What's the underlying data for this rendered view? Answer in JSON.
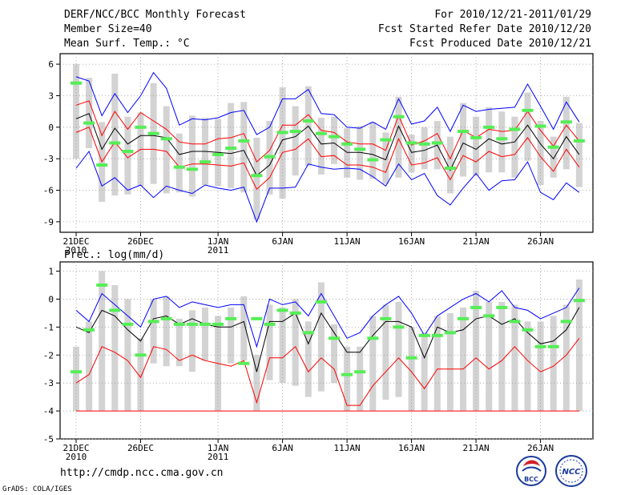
{
  "header": {
    "title": "DERF/NCC/BCC Monthly Forecast",
    "member_size": "Member Size=40",
    "variable": "Mean Surf. Temp.: °C",
    "for_range": "For 2010/12/21-2011/01/29",
    "fcst_started": "Fcst Started Refer Date 2010/12/20",
    "fcst_produced": "Fcst Produced Date 2010/12/21"
  },
  "footer": {
    "url": "http://cmdp.ncc.cma.gov.cn",
    "grads": "GrADS: COLA/IGES",
    "logo_bcc": "BCC",
    "logo_ncc": "NCC"
  },
  "colors": {
    "max": "#0000ff",
    "mean": "#000000",
    "min": "#ff0000",
    "box": "#d3d3d3",
    "obs": "#55ee55",
    "grid": "#999999"
  },
  "chart_data": [
    {
      "type": "line",
      "name": "temperature",
      "title": "",
      "ylabel": "°C",
      "ylim": [
        -10,
        7
      ],
      "yticks": [
        6,
        3,
        0,
        -3,
        -6,
        -9
      ],
      "ytick_labels": [
        "6",
        "3",
        "0",
        "-3",
        "-6",
        "-9"
      ],
      "xtick_labels": [
        {
          "day": 1,
          "label": "21DEC",
          "sub": "2010"
        },
        {
          "day": 6,
          "label": "26DEC",
          "sub": ""
        },
        {
          "day": 12,
          "label": "1JAN",
          "sub": "2011"
        },
        {
          "day": 17,
          "label": "6JAN",
          "sub": ""
        },
        {
          "day": 22,
          "label": "11JAN",
          "sub": ""
        },
        {
          "day": 27,
          "label": "16JAN",
          "sub": ""
        },
        {
          "day": 32,
          "label": "21JAN",
          "sub": ""
        },
        {
          "day": 37,
          "label": "26JAN",
          "sub": ""
        }
      ],
      "x": [
        1,
        2,
        3,
        4,
        5,
        6,
        7,
        8,
        9,
        10,
        11,
        12,
        13,
        14,
        15,
        16,
        17,
        18,
        19,
        20,
        21,
        22,
        23,
        24,
        25,
        26,
        27,
        28,
        29,
        30,
        31,
        32,
        33,
        34,
        35,
        36,
        37,
        38,
        39,
        40
      ],
      "series": [
        {
          "name": "max",
          "values": [
            -3.9,
            -2.3,
            -5.6,
            -4.8,
            -6.0,
            -5.5,
            -6.7,
            -5.6,
            -6.0,
            -6.3,
            -5.5,
            -5.8,
            -6.0,
            -5.7,
            -9.0,
            -5.8,
            -5.8,
            -5.7,
            -3.5,
            -3.8,
            -4.0,
            -3.9,
            -4.0,
            -4.7,
            -5.6,
            -3.5,
            -5.0,
            -4.4,
            -6.5,
            -7.4,
            -5.8,
            -4.4,
            -6.0,
            -5.1,
            -5.0,
            -3.3,
            -6.2,
            -6.9,
            -5.3,
            -6.2
          ]
        },
        {
          "name": "min_upper",
          "values": [
            4.8,
            4.4,
            1.1,
            3.2,
            1.4,
            3.0,
            5.2,
            3.7,
            0.2,
            0.8,
            0.7,
            0.9,
            1.4,
            1.6,
            -0.7,
            0.0,
            2.7,
            2.7,
            3.6,
            1.3,
            1.2,
            0.0,
            -0.1,
            0.5,
            -0.2,
            2.7,
            0.3,
            0.6,
            1.9,
            -0.4,
            2.1,
            1.5,
            1.7,
            1.8,
            1.9,
            4.1,
            2.0,
            -0.2,
            2.4,
            0.5
          ]
        },
        {
          "name": "red_upper",
          "values": [
            2.1,
            2.5,
            -0.8,
            1.5,
            -0.2,
            1.4,
            0.6,
            -0.2,
            -1.4,
            -1.6,
            -1.6,
            -1.1,
            -1.0,
            -0.6,
            -3.3,
            -2.2,
            0.2,
            0.2,
            1.2,
            -0.3,
            -0.5,
            -1.4,
            -1.6,
            -1.6,
            -2.2,
            1.1,
            -1.7,
            -1.3,
            -0.6,
            -3.0,
            -0.3,
            -1.0,
            -0.2,
            -0.4,
            -0.3,
            1.5,
            -0.3,
            -1.8,
            0.2,
            -1.3
          ]
        },
        {
          "name": "mean",
          "values": [
            0.8,
            1.3,
            -2.1,
            -0.1,
            -1.6,
            -0.8,
            -0.8,
            -1.0,
            -2.6,
            -2.3,
            -2.3,
            -2.4,
            -2.5,
            -2.2,
            -4.6,
            -3.6,
            -1.2,
            -0.9,
            0.1,
            -1.6,
            -1.5,
            -2.4,
            -2.4,
            -2.6,
            -3.1,
            0.1,
            -2.4,
            -2.2,
            -1.7,
            -4.1,
            -1.5,
            -2.1,
            -1.1,
            -1.6,
            -1.4,
            0.2,
            -1.6,
            -3.0,
            -0.9,
            -2.6
          ]
        },
        {
          "name": "red_lower",
          "values": [
            -0.5,
            0.0,
            -3.3,
            -1.4,
            -2.9,
            -2.1,
            -2.1,
            -2.3,
            -3.8,
            -3.5,
            -3.5,
            -3.6,
            -3.7,
            -3.4,
            -5.9,
            -4.8,
            -2.4,
            -2.1,
            -1.1,
            -2.8,
            -2.7,
            -3.6,
            -3.6,
            -3.8,
            -4.3,
            -1.1,
            -3.6,
            -3.4,
            -2.9,
            -5.0,
            -2.7,
            -3.3,
            -2.3,
            -2.8,
            -2.6,
            -1.0,
            -2.8,
            -4.2,
            -2.1,
            -3.8
          ]
        }
      ],
      "boxes": [
        {
          "lo": -3.0,
          "hi": 6.0
        },
        {
          "lo": -2.0,
          "hi": 4.7
        },
        {
          "lo": -7.1,
          "hi": 0.5
        },
        {
          "lo": -6.5,
          "hi": 5.1
        },
        {
          "lo": -6.4,
          "hi": 1.0
        },
        {
          "lo": -5.6,
          "hi": 1.4
        },
        {
          "lo": -5.4,
          "hi": 4.2
        },
        {
          "lo": -6.3,
          "hi": 2.0
        },
        {
          "lo": -6.2,
          "hi": -0.6
        },
        {
          "lo": -6.6,
          "hi": 1.1
        },
        {
          "lo": -5.5,
          "hi": 0.9
        },
        {
          "lo": -5.6,
          "hi": 0.8
        },
        {
          "lo": -5.8,
          "hi": 2.3
        },
        {
          "lo": -6.2,
          "hi": 2.4
        },
        {
          "lo": -8.8,
          "hi": -1.0
        },
        {
          "lo": -6.4,
          "hi": 0.6
        },
        {
          "lo": -6.8,
          "hi": 3.8
        },
        {
          "lo": -4.6,
          "hi": 2.0
        },
        {
          "lo": -3.7,
          "hi": 3.9
        },
        {
          "lo": -4.5,
          "hi": 0.9
        },
        {
          "lo": -3.5,
          "hi": 1.0
        },
        {
          "lo": -4.8,
          "hi": -0.1
        },
        {
          "lo": -5.0,
          "hi": 0.1
        },
        {
          "lo": -4.9,
          "hi": 0.5
        },
        {
          "lo": -5.4,
          "hi": -0.5
        },
        {
          "lo": -4.8,
          "hi": 2.9
        },
        {
          "lo": -4.3,
          "hi": -0.7
        },
        {
          "lo": -4.0,
          "hi": 0.0
        },
        {
          "lo": -4.0,
          "hi": 0.6
        },
        {
          "lo": -6.3,
          "hi": -0.9
        },
        {
          "lo": -4.7,
          "hi": 2.3
        },
        {
          "lo": -4.6,
          "hi": 1.0
        },
        {
          "lo": -4.3,
          "hi": 1.9
        },
        {
          "lo": -4.3,
          "hi": 1.5
        },
        {
          "lo": -4.8,
          "hi": 1.0
        },
        {
          "lo": -3.2,
          "hi": 3.3
        },
        {
          "lo": -5.5,
          "hi": 0.6
        },
        {
          "lo": -4.8,
          "hi": -0.9
        },
        {
          "lo": -4.0,
          "hi": 2.9
        },
        {
          "lo": -5.7,
          "hi": 0.4
        }
      ],
      "obs": [
        4.2,
        0.4,
        -3.6,
        -1.5,
        -2.3,
        0.0,
        -0.6,
        -1.1,
        -3.8,
        -4.0,
        -3.3,
        -2.6,
        -2.0,
        -1.3,
        -4.6,
        -2.8,
        -0.5,
        -0.4,
        0.6,
        -0.6,
        -0.9,
        -1.6,
        -2.1,
        -3.1,
        -1.2,
        1.0,
        -1.5,
        -1.6,
        -1.5,
        -3.9,
        -0.4,
        -1.0,
        0.0,
        -1.1,
        -0.2,
        1.6,
        0.1,
        -1.9,
        0.5,
        -1.3
      ]
    },
    {
      "type": "line",
      "name": "precipitation",
      "title": "Prec.: log(mm/d)",
      "ylabel": "log(mm/d)",
      "ylim": [
        -5,
        1.2
      ],
      "yticks": [
        1,
        0,
        -1,
        -2,
        -3,
        -4,
        -5
      ],
      "ytick_labels": [
        "1",
        "0",
        "-1",
        "-2",
        "-3",
        "-4",
        "-5"
      ],
      "xtick_labels": [
        {
          "day": 1,
          "label": "21DEC",
          "sub": "2010"
        },
        {
          "day": 6,
          "label": "26DEC",
          "sub": ""
        },
        {
          "day": 12,
          "label": "1JAN",
          "sub": "2011"
        },
        {
          "day": 17,
          "label": "6JAN",
          "sub": ""
        },
        {
          "day": 22,
          "label": "11JAN",
          "sub": ""
        },
        {
          "day": 27,
          "label": "16JAN",
          "sub": ""
        },
        {
          "day": 32,
          "label": "21JAN",
          "sub": ""
        },
        {
          "day": 37,
          "label": "26JAN",
          "sub": ""
        }
      ],
      "x": [
        1,
        2,
        3,
        4,
        5,
        6,
        7,
        8,
        9,
        10,
        11,
        12,
        13,
        14,
        15,
        16,
        17,
        18,
        19,
        20,
        21,
        22,
        23,
        24,
        25,
        26,
        27,
        28,
        29,
        30,
        31,
        32,
        33,
        34,
        35,
        36,
        37,
        38,
        39,
        40
      ],
      "series": [
        {
          "name": "max",
          "values": [
            -0.4,
            -0.8,
            0.2,
            -0.2,
            -0.6,
            -1.0,
            0.0,
            0.1,
            -0.3,
            -0.1,
            -0.2,
            -0.3,
            -0.2,
            -0.2,
            -1.7,
            0.0,
            -0.2,
            -0.1,
            -0.6,
            0.2,
            -0.6,
            -1.4,
            -1.2,
            -0.6,
            -0.2,
            0.1,
            -0.5,
            -1.3,
            -0.6,
            -0.3,
            0.0,
            0.2,
            -0.1,
            0.3,
            -0.3,
            -0.4,
            -0.7,
            -0.5,
            -0.3,
            0.4
          ]
        },
        {
          "name": "mean",
          "values": [
            -1.0,
            -1.2,
            -0.4,
            -0.6,
            -1.1,
            -1.5,
            -0.7,
            -0.6,
            -0.9,
            -0.7,
            -0.9,
            -1.0,
            -1.0,
            -0.8,
            -2.6,
            -0.8,
            -0.8,
            -0.5,
            -1.6,
            -0.5,
            -1.2,
            -1.9,
            -1.9,
            -1.3,
            -0.8,
            -0.8,
            -1.0,
            -2.1,
            -1.0,
            -1.2,
            -1.1,
            -0.7,
            -0.6,
            -0.9,
            -0.7,
            -1.2,
            -1.6,
            -1.5,
            -1.1,
            -0.3
          ]
        },
        {
          "name": "min",
          "values": [
            -3.0,
            -2.7,
            -1.7,
            -1.9,
            -2.2,
            -2.8,
            -1.7,
            -1.8,
            -2.2,
            -2.0,
            -2.2,
            -2.3,
            -2.4,
            -2.2,
            -3.7,
            -2.1,
            -2.1,
            -1.7,
            -2.6,
            -2.1,
            -2.5,
            -3.8,
            -3.8,
            -3.1,
            -2.6,
            -2.1,
            -2.6,
            -3.2,
            -2.5,
            -2.5,
            -2.5,
            -2.1,
            -2.5,
            -2.2,
            -1.7,
            -2.2,
            -2.6,
            -2.4,
            -2.0,
            -1.4
          ]
        },
        {
          "name": "floor",
          "values": [
            -4.0,
            -4.0,
            -4.0,
            -4.0,
            -4.0,
            -4.0,
            -4.0,
            -4.0,
            -4.0,
            -4.0,
            -4.0,
            -4.0,
            -4.0,
            -4.0,
            -4.0,
            -4.0,
            -4.0,
            -4.0,
            -4.0,
            -4.0,
            -4.0,
            -4.0,
            -4.0,
            -4.0,
            -4.0,
            -4.0,
            -4.0,
            -4.0,
            -4.0,
            -4.0,
            -4.0,
            -4.0,
            -4.0,
            -4.0,
            -4.0,
            -4.0,
            -4.0,
            -4.0,
            -4.0,
            -4.0
          ]
        }
      ],
      "boxes": [
        {
          "lo": -4.0,
          "hi": -1.7
        },
        {
          "lo": -4.0,
          "hi": -0.8
        },
        {
          "lo": -4.0,
          "hi": 1.0
        },
        {
          "lo": -4.0,
          "hi": 0.5
        },
        {
          "lo": -4.0,
          "hi": 0.0
        },
        {
          "lo": -4.0,
          "hi": -1.4
        },
        {
          "lo": -2.3,
          "hi": 0.0
        },
        {
          "lo": -2.4,
          "hi": 0.1
        },
        {
          "lo": -2.4,
          "hi": -0.7
        },
        {
          "lo": -2.6,
          "hi": -0.4
        },
        {
          "lo": -2.2,
          "hi": -0.3
        },
        {
          "lo": -4.0,
          "hi": -0.6
        },
        {
          "lo": -2.3,
          "hi": -0.3
        },
        {
          "lo": -2.2,
          "hi": 0.1
        },
        {
          "lo": -4.0,
          "hi": -2.0
        },
        {
          "lo": -2.9,
          "hi": -0.2
        },
        {
          "lo": -3.0,
          "hi": -0.3
        },
        {
          "lo": -3.1,
          "hi": 0.0
        },
        {
          "lo": -3.5,
          "hi": -0.8
        },
        {
          "lo": -3.3,
          "hi": 0.6
        },
        {
          "lo": -3.0,
          "hi": -0.9
        },
        {
          "lo": -4.0,
          "hi": -1.7
        },
        {
          "lo": -4.0,
          "hi": -1.7
        },
        {
          "lo": -4.0,
          "hi": -0.6
        },
        {
          "lo": -3.6,
          "hi": -0.2
        },
        {
          "lo": -3.5,
          "hi": -0.1
        },
        {
          "lo": -4.0,
          "hi": -1.0
        },
        {
          "lo": -4.0,
          "hi": -1.2
        },
        {
          "lo": -4.0,
          "hi": -0.6
        },
        {
          "lo": -4.0,
          "hi": -0.5
        },
        {
          "lo": -4.0,
          "hi": -0.3
        },
        {
          "lo": -4.0,
          "hi": 0.3
        },
        {
          "lo": -4.0,
          "hi": -0.1
        },
        {
          "lo": -4.0,
          "hi": -0.1
        },
        {
          "lo": -4.0,
          "hi": -0.2
        },
        {
          "lo": -4.0,
          "hi": -0.8
        },
        {
          "lo": -4.0,
          "hi": -0.8
        },
        {
          "lo": -4.0,
          "hi": -0.6
        },
        {
          "lo": -4.0,
          "hi": -0.2
        },
        {
          "lo": -4.0,
          "hi": 0.7
        }
      ],
      "obs": [
        -2.6,
        -1.1,
        0.5,
        -0.4,
        -0.9,
        -2.0,
        -0.8,
        -0.7,
        -0.9,
        -0.9,
        -0.9,
        -0.9,
        -0.7,
        -2.3,
        -0.7,
        -0.9,
        -0.4,
        -0.5,
        -1.2,
        -0.1,
        -1.4,
        -2.7,
        -2.6,
        -1.4,
        -0.7,
        -1.0,
        -2.1,
        -1.3,
        -1.3,
        -1.2,
        -0.7,
        -0.3,
        -0.6,
        -0.3,
        -0.8,
        -1.1,
        -1.7,
        -1.7,
        -0.8,
        -0.05
      ]
    }
  ]
}
